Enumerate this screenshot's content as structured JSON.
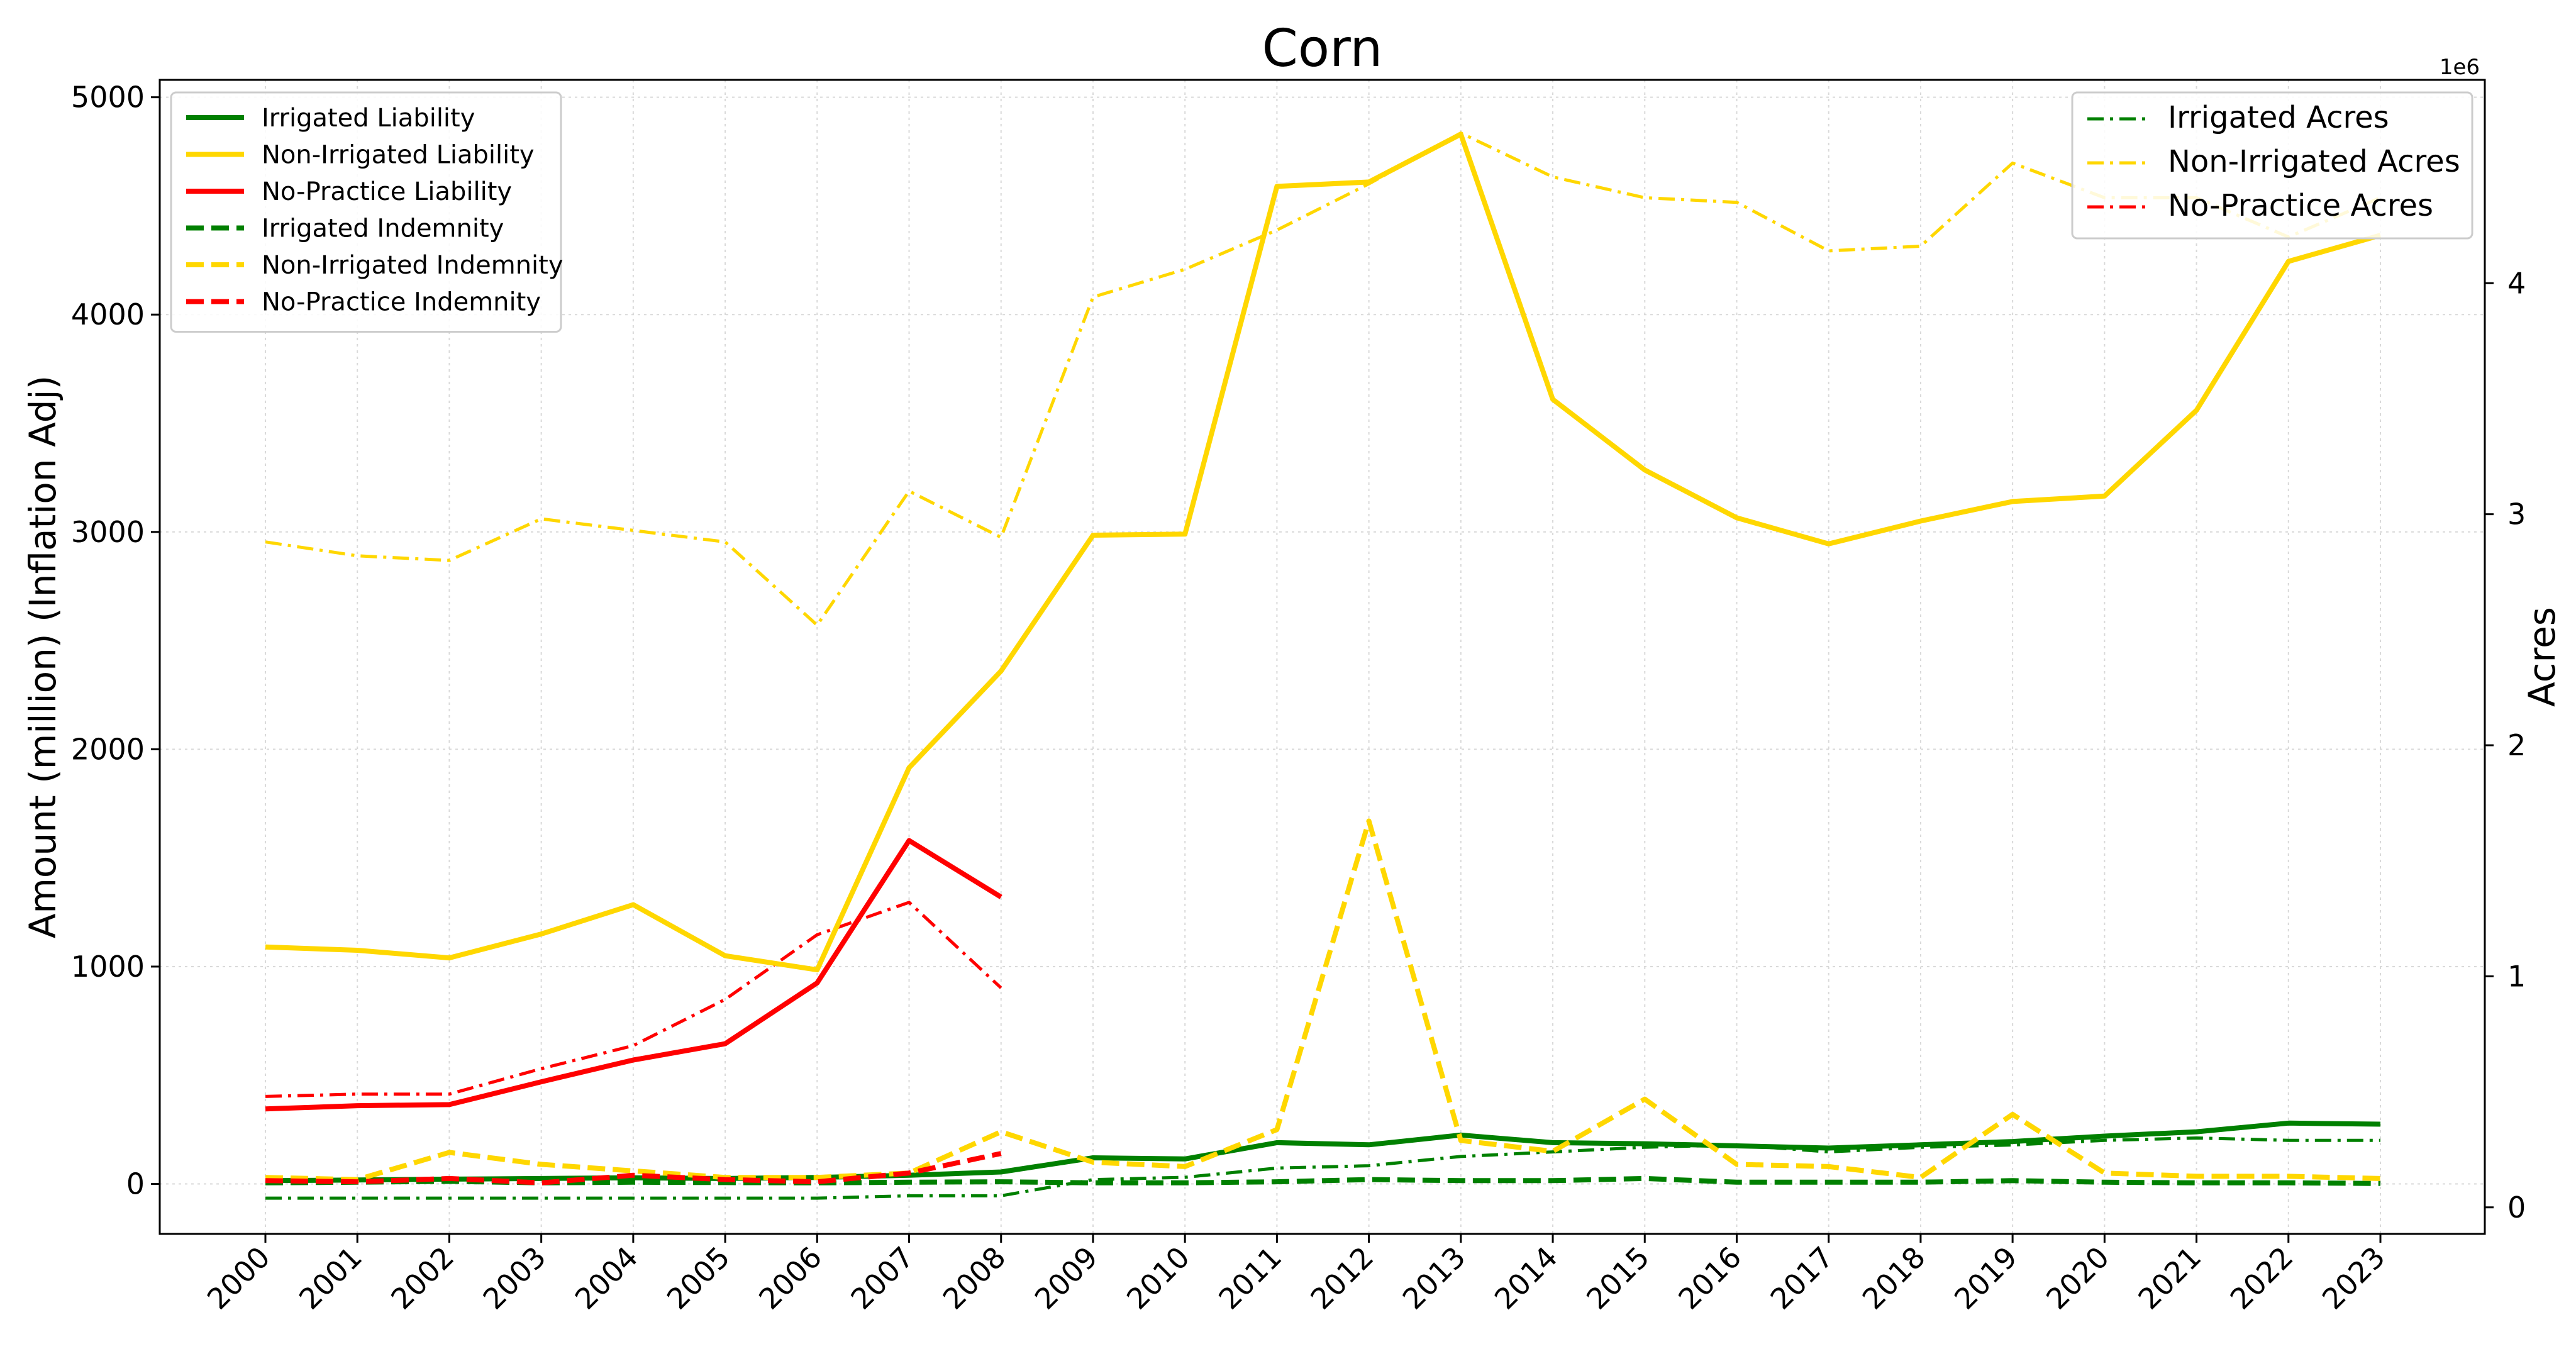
{
  "chart_data": {
    "type": "line",
    "title": "Corn",
    "ylabel_left": "Amount (million) (Inflation Adj)",
    "ylabel_right": "Acres",
    "right_axis_offset": "1e6",
    "x": [
      "2000",
      "2001",
      "2002",
      "2003",
      "2004",
      "2005",
      "2006",
      "2007",
      "2008",
      "2009",
      "2010",
      "2011",
      "2012",
      "2013",
      "2014",
      "2015",
      "2016",
      "2017",
      "2018",
      "2019",
      "2020",
      "2021",
      "2022",
      "2023"
    ],
    "ylim_left": [
      -230,
      5080
    ],
    "ylim_right": [
      -0.115,
      4.88
    ],
    "yticks_left": [
      0,
      1000,
      2000,
      3000,
      4000,
      5000
    ],
    "yticks_right": [
      0,
      1,
      2,
      3,
      4
    ],
    "grid": true,
    "legend_left_position": "upper-left",
    "legend_right_position": "upper-right",
    "series_left": [
      {
        "name": "Irrigated Liability",
        "color": "#008000",
        "style": "solid",
        "values": [
          15,
          18,
          22,
          25,
          28,
          25,
          30,
          40,
          55,
          120,
          115,
          190,
          180,
          225,
          190,
          185,
          175,
          165,
          180,
          195,
          220,
          240,
          280,
          275
        ]
      },
      {
        "name": "Non-Irrigated Liability",
        "color": "#FFD700",
        "style": "solid",
        "values": [
          1090,
          1075,
          1040,
          1150,
          1285,
          1050,
          985,
          1915,
          2360,
          2985,
          2990,
          4590,
          4610,
          4830,
          3610,
          3285,
          3065,
          2945,
          3050,
          3140,
          3165,
          3560,
          4245,
          4365
        ]
      },
      {
        "name": "No-Practice Liability",
        "color": "#FF0000",
        "style": "solid",
        "values": [
          345,
          360,
          365,
          470,
          570,
          645,
          925,
          1580,
          1320,
          null,
          null,
          null,
          null,
          null,
          null,
          null,
          null,
          null,
          null,
          null,
          null,
          null,
          null,
          null
        ]
      },
      {
        "name": "Irrigated Indemnity",
        "color": "#008000",
        "style": "dashed",
        "values": [
          5,
          8,
          12,
          5,
          8,
          6,
          5,
          8,
          10,
          5,
          5,
          10,
          20,
          15,
          15,
          25,
          8,
          8,
          8,
          15,
          8,
          5,
          5,
          2
        ]
      },
      {
        "name": "Non-Irrigated Indemnity",
        "color": "#FFD700",
        "style": "dashed",
        "values": [
          30,
          20,
          145,
          90,
          60,
          30,
          30,
          50,
          240,
          100,
          80,
          250,
          1670,
          200,
          150,
          390,
          90,
          80,
          30,
          320,
          50,
          35,
          35,
          25
        ]
      },
      {
        "name": "No-Practice Indemnity",
        "color": "#FF0000",
        "style": "dashed",
        "values": [
          15,
          10,
          25,
          5,
          40,
          20,
          10,
          50,
          140,
          null,
          null,
          null,
          null,
          null,
          null,
          null,
          null,
          null,
          null,
          null,
          null,
          null,
          null,
          null
        ]
      }
    ],
    "series_right": [
      {
        "name": "Irrigated Acres",
        "color": "#008000",
        "style": "dashdot",
        "values": [
          0.04,
          0.04,
          0.04,
          0.04,
          0.04,
          0.04,
          0.04,
          0.05,
          0.05,
          0.12,
          0.13,
          0.17,
          0.18,
          0.22,
          0.24,
          0.26,
          0.27,
          0.24,
          0.26,
          0.27,
          0.29,
          0.3,
          0.29,
          0.29
        ]
      },
      {
        "name": "Non-Irrigated Acres",
        "color": "#FFD700",
        "style": "dashdot",
        "values": [
          2.88,
          2.82,
          2.8,
          2.98,
          2.93,
          2.88,
          2.52,
          3.1,
          2.9,
          3.94,
          4.06,
          4.23,
          4.43,
          4.65,
          4.46,
          4.37,
          4.35,
          4.14,
          4.16,
          4.52,
          4.37,
          4.37,
          4.2,
          4.37
        ]
      },
      {
        "name": "No-Practice Acres",
        "color": "#FF0000",
        "style": "dashdot",
        "values": [
          0.48,
          0.49,
          0.49,
          0.6,
          0.7,
          0.9,
          1.18,
          1.32,
          0.95,
          null,
          null,
          null,
          null,
          null,
          null,
          null,
          null,
          null,
          null,
          null,
          null,
          null,
          null,
          null
        ]
      }
    ]
  }
}
